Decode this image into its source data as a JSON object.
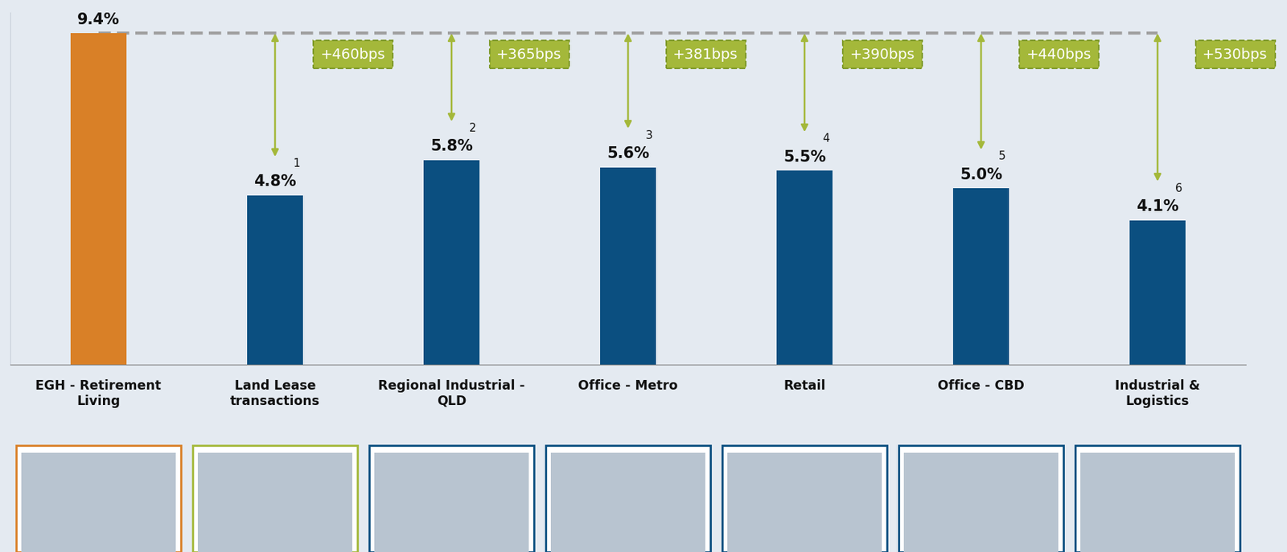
{
  "chart_data": {
    "type": "bar",
    "categories": [
      "EGH - Retirement\nLiving",
      "Land Lease\ntransactions",
      "Regional Industrial -\nQLD",
      "Office - Metro",
      "Retail",
      "Office - CBD",
      "Industrial &\nLogistics"
    ],
    "values": [
      9.4,
      4.8,
      5.8,
      5.6,
      5.5,
      5.0,
      4.1
    ],
    "value_labels": [
      "9.4%",
      "4.8%",
      "5.8%",
      "5.6%",
      "5.5%",
      "5.0%",
      "4.1%"
    ],
    "footnote_marks": [
      null,
      "1",
      "2",
      "3",
      "4",
      "5",
      "6"
    ],
    "spread_labels": [
      null,
      "+460bps",
      "+365bps",
      "+381bps",
      "+390bps",
      "+440bps",
      "+530bps"
    ],
    "colors": [
      "#D98027",
      "#0B4F80",
      "#0B4F80",
      "#0B4F80",
      "#0B4F80",
      "#0B4F80",
      "#0B4F80"
    ],
    "ylim": [
      0,
      10
    ],
    "yticks": [],
    "data_labels": true,
    "tick_labels": "x",
    "grid": false
  }
}
